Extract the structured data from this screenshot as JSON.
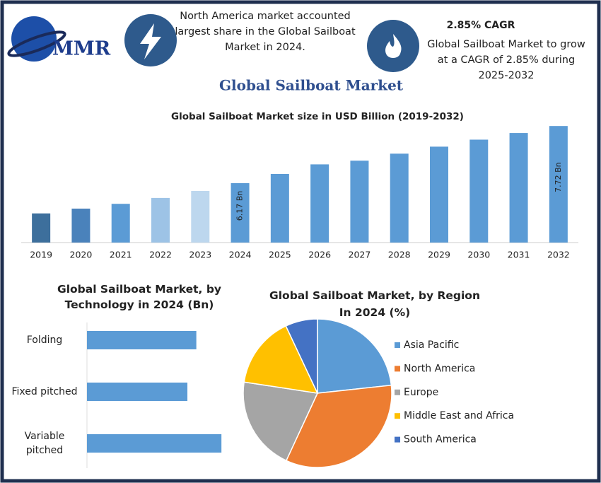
{
  "header": {
    "logo": "MMR",
    "note": "North America market accounted largest share in the Global Sailboat Market in 2024.",
    "cagr_title": "2.85% CAGR",
    "cagr_text": "Global Sailboat Market to grow at a CAGR of 2.85% during 2025-2032",
    "title": "Global Sailboat Market"
  },
  "chart_data": [
    {
      "type": "bar",
      "title": "Global Sailboat Market size in USD Billion (2019-2032)",
      "categories": [
        "2019",
        "2020",
        "2021",
        "2022",
        "2023",
        "2024",
        "2025",
        "2026",
        "2027",
        "2028",
        "2029",
        "2030",
        "2031",
        "2032"
      ],
      "values": [
        5.35,
        5.48,
        5.61,
        5.77,
        5.96,
        6.17,
        6.42,
        6.68,
        6.78,
        6.97,
        7.16,
        7.35,
        7.53,
        7.72
      ],
      "value_labels": [
        null,
        null,
        null,
        null,
        null,
        "6.17 Bn",
        null,
        null,
        null,
        null,
        null,
        null,
        null,
        "7.72 Bn"
      ],
      "colors": [
        "#3d6f9c",
        "#4a82bb",
        "#5b9bd5",
        "#9dc3e6",
        "#bdd7ee",
        "#5b9bd5",
        "#5b9bd5",
        "#5b9bd5",
        "#5b9bd5",
        "#5b9bd5",
        "#5b9bd5",
        "#5b9bd5",
        "#5b9bd5",
        "#5b9bd5"
      ],
      "ylim": [
        4.56,
        7.8
      ]
    },
    {
      "type": "barh",
      "title": "Global Sailboat Market, by Technology in 2024 (Bn)",
      "categories": [
        "Folding",
        "Fixed pitched",
        "Variable pitched"
      ],
      "values": [
        1.96,
        1.8,
        2.41
      ],
      "color": "#5b9bd5",
      "xlim": [
        0,
        2.75
      ]
    },
    {
      "type": "pie",
      "title": "Global Sailboat Market, by Region In 2024 (%)",
      "categories": [
        "Asia Pacific",
        "North America",
        "Europe",
        "Middle East and Africa",
        "South America"
      ],
      "values": [
        23.3,
        33.6,
        20.5,
        15.6,
        7.0
      ],
      "colors": [
        "#5b9bd5",
        "#ed7d31",
        "#a5a5a5",
        "#ffc000",
        "#4472c4"
      ],
      "legend": "right"
    }
  ]
}
